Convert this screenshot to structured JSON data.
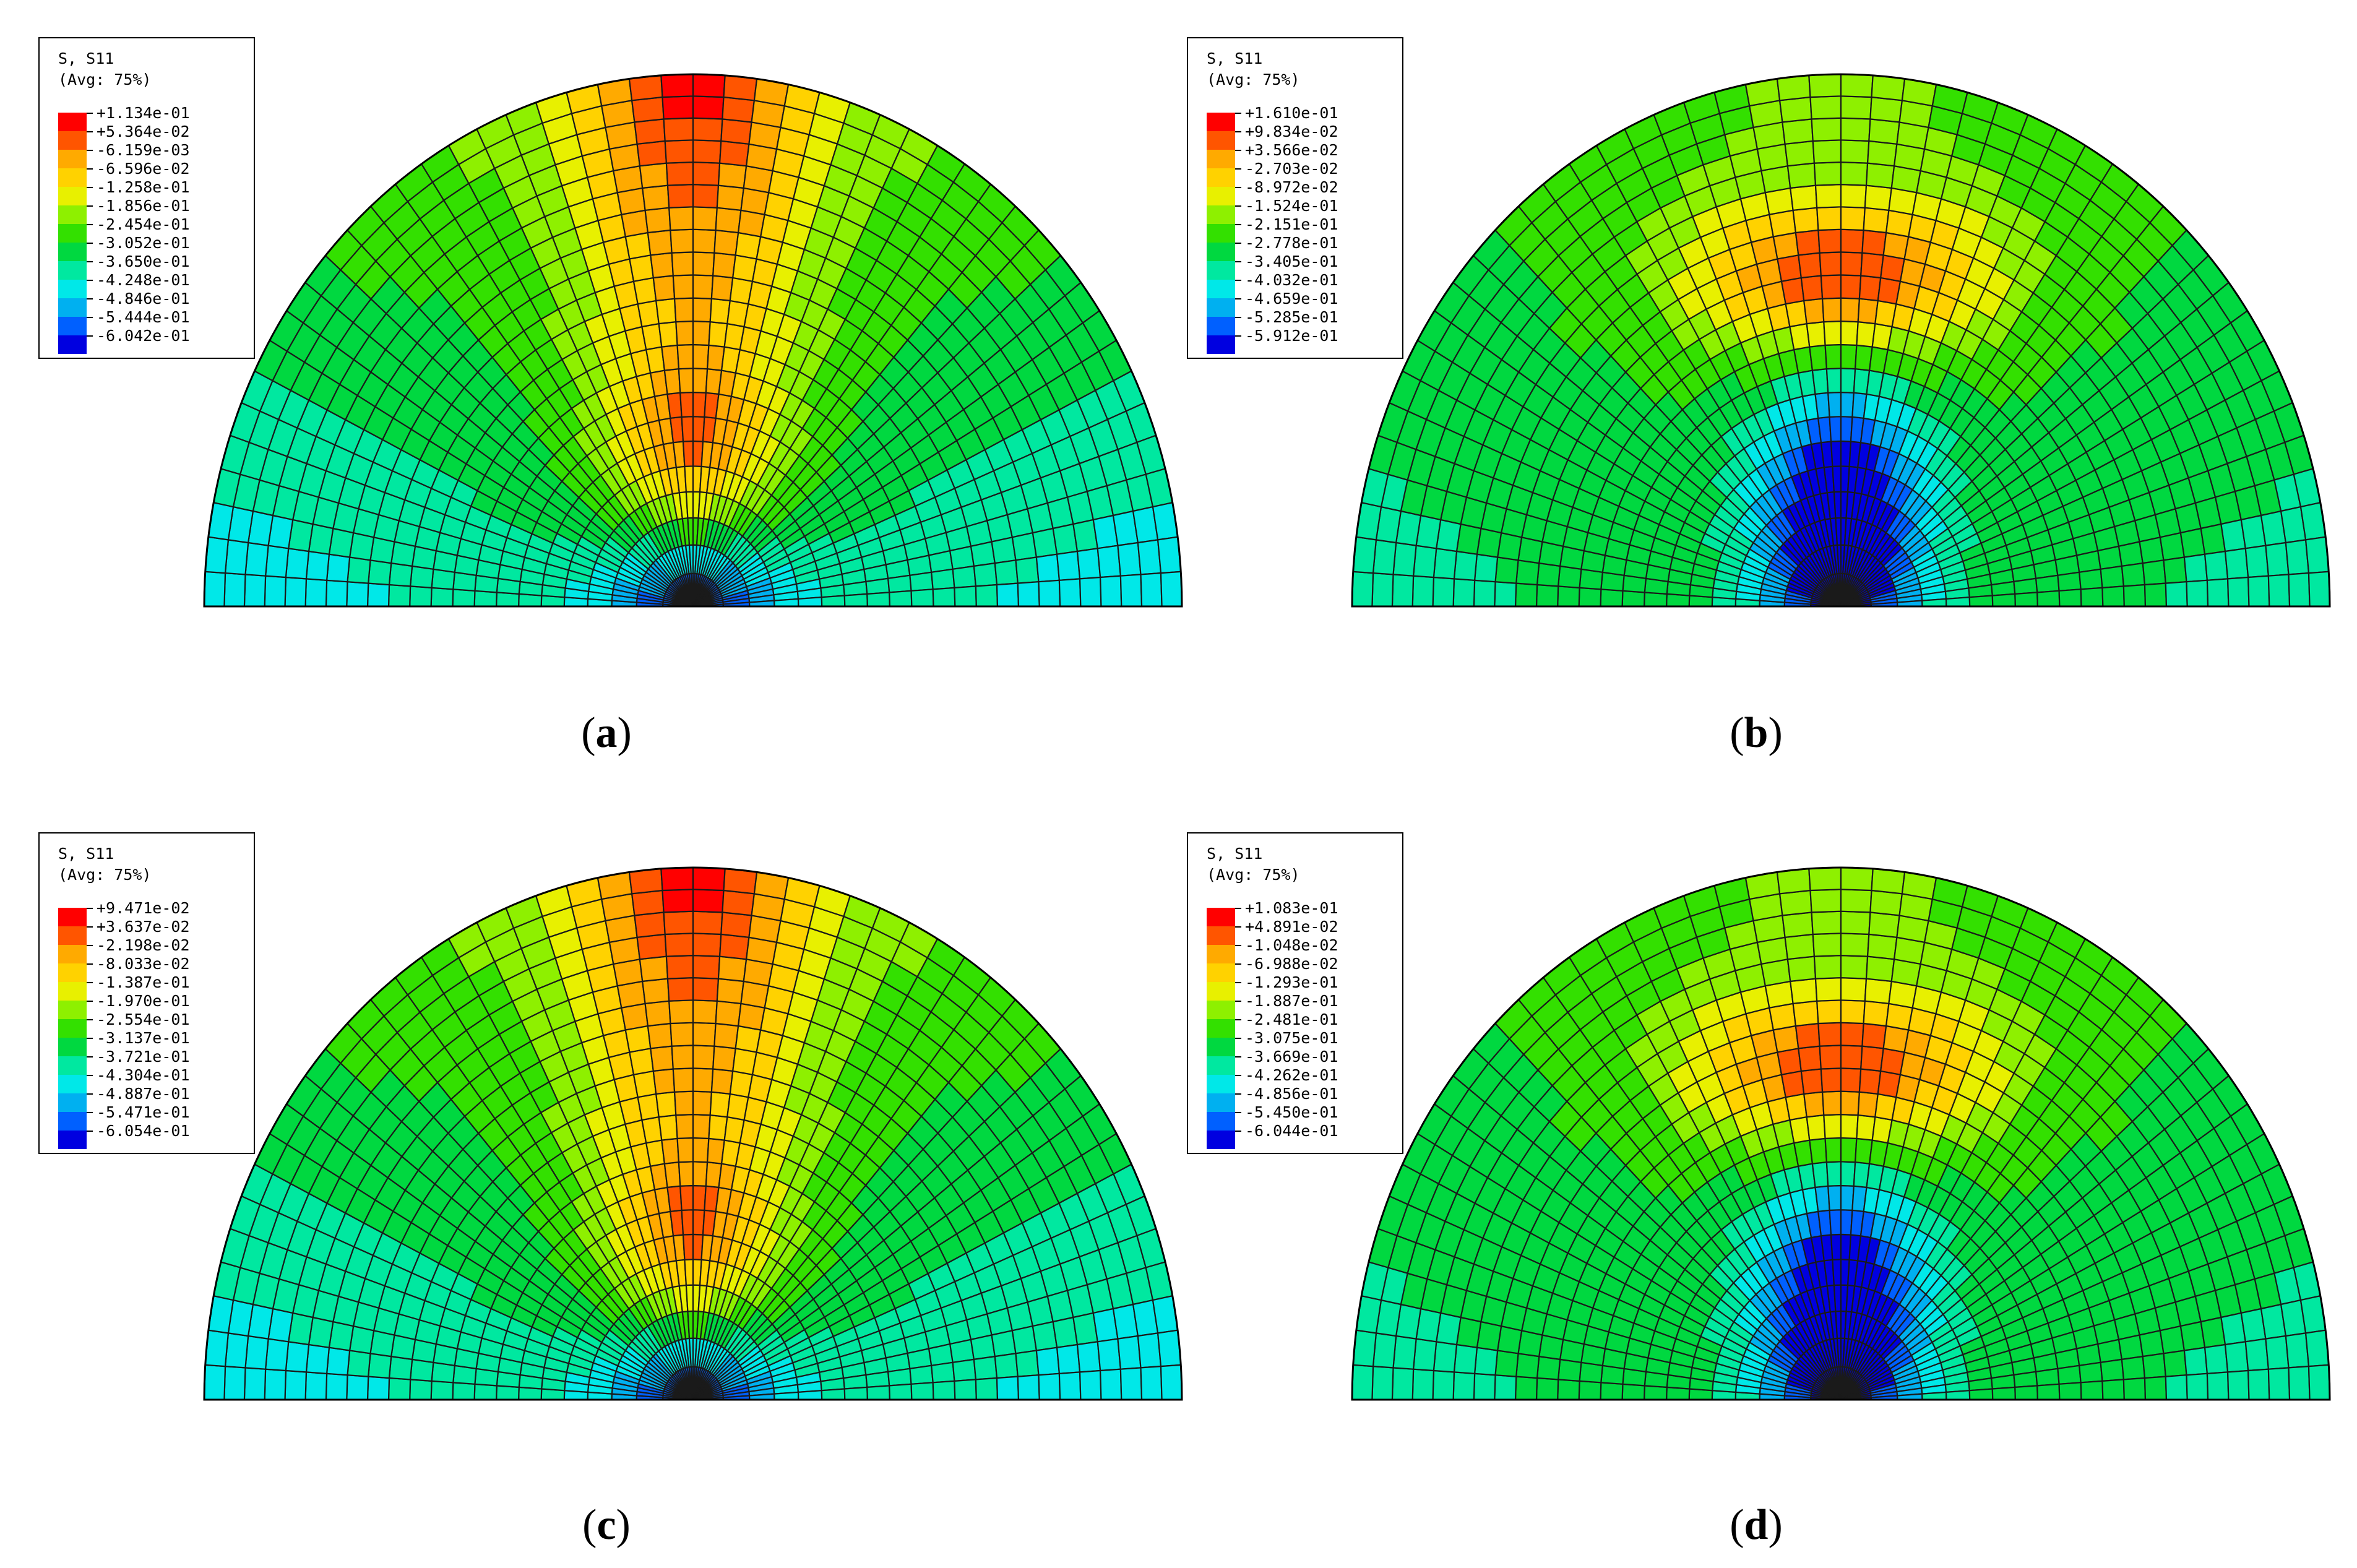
{
  "colors": [
    "#ff0000",
    "#ff5500",
    "#ffaa00",
    "#ffd200",
    "#e8f000",
    "#8ef000",
    "#33e000",
    "#00d840",
    "#00e8a0",
    "#00e8e8",
    "#00b0f0",
    "#0060ff",
    "#0000e0"
  ],
  "panels": [
    {
      "id": "a",
      "caption": "a",
      "legend": {
        "title_line1": "S, S11",
        "title_line2": "(Avg: 75%)",
        "values": [
          "+1.134e-01",
          "+5.364e-02",
          "-6.159e-03",
          "-6.596e-02",
          "-1.258e-01",
          "-1.856e-01",
          "-2.454e-01",
          "-3.052e-01",
          "-3.650e-01",
          "-4.248e-01",
          "-4.846e-01",
          "-5.444e-01",
          "-6.042e-01"
        ]
      },
      "pattern": "top-peak"
    },
    {
      "id": "b",
      "caption": "b",
      "legend": {
        "title_line1": "S, S11",
        "title_line2": "(Avg: 75%)",
        "values": [
          "+1.610e-01",
          "+9.834e-02",
          "+3.566e-02",
          "-2.703e-02",
          "-8.972e-02",
          "-1.524e-01",
          "-2.151e-01",
          "-2.778e-01",
          "-3.405e-01",
          "-4.032e-01",
          "-4.659e-01",
          "-5.285e-01",
          "-5.912e-01"
        ]
      },
      "pattern": "arch-peak"
    },
    {
      "id": "c",
      "caption": "c",
      "legend": {
        "title_line1": "S, S11",
        "title_line2": "(Avg: 75%)",
        "values": [
          "+9.471e-02",
          "+3.637e-02",
          "-2.198e-02",
          "-8.033e-02",
          "-1.387e-01",
          "-1.970e-01",
          "-2.554e-01",
          "-3.137e-01",
          "-3.721e-01",
          "-4.304e-01",
          "-4.887e-01",
          "-5.471e-01",
          "-6.054e-01"
        ]
      },
      "pattern": "top-peak"
    },
    {
      "id": "d",
      "caption": "d",
      "legend": {
        "title_line1": "S, S11",
        "title_line2": "(Avg: 75%)",
        "values": [
          "+1.083e-01",
          "+4.891e-02",
          "-1.048e-02",
          "-6.988e-02",
          "-1.293e-01",
          "-1.887e-01",
          "-2.481e-01",
          "-3.075e-01",
          "-3.669e-01",
          "-4.262e-01",
          "-4.856e-01",
          "-5.450e-01",
          "-6.044e-01"
        ]
      },
      "pattern": "arch-peak"
    }
  ]
}
